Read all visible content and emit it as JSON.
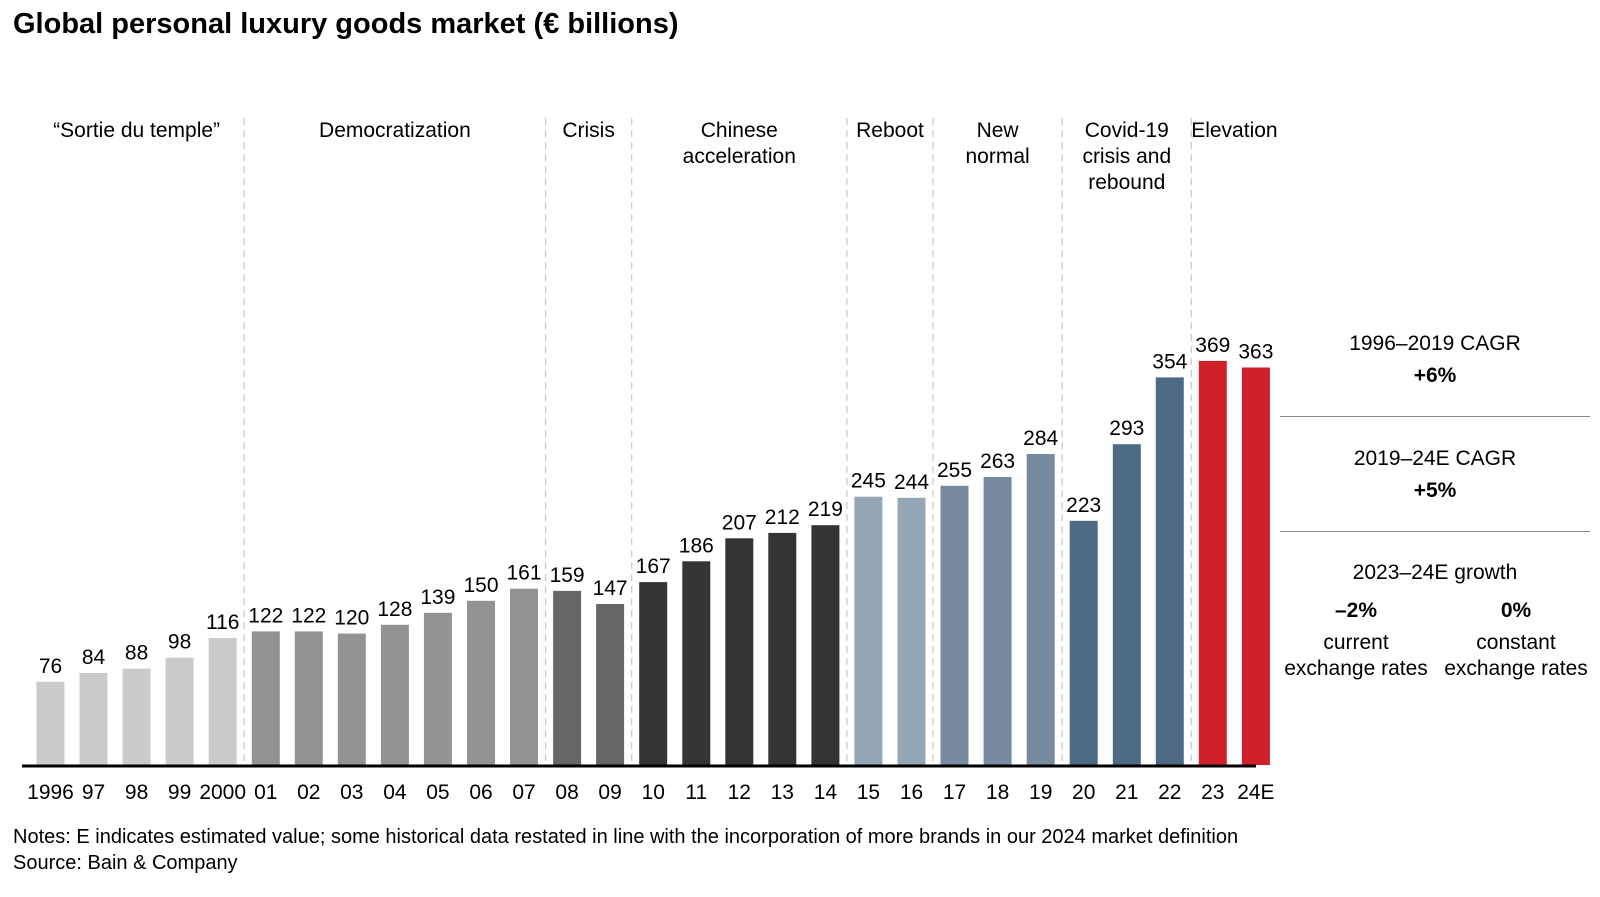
{
  "title": "Global personal luxury goods market (€ billions)",
  "notes": "Notes: E indicates estimated value; some historical data restated in line with the incorporation of more brands in our 2024 market definition",
  "source": "Source: Bain & Company",
  "chart_data": {
    "type": "bar",
    "title": "Global personal luxury goods market (€ billions)",
    "xlabel": "",
    "ylabel": "",
    "categories": [
      "1996",
      "97",
      "98",
      "99",
      "2000",
      "01",
      "02",
      "03",
      "04",
      "05",
      "06",
      "07",
      "08",
      "09",
      "10",
      "11",
      "12",
      "13",
      "14",
      "15",
      "16",
      "17",
      "18",
      "19",
      "20",
      "21",
      "22",
      "23",
      "24E"
    ],
    "values": [
      76,
      84,
      88,
      98,
      116,
      122,
      122,
      120,
      128,
      139,
      150,
      161,
      159,
      147,
      167,
      186,
      207,
      212,
      219,
      245,
      244,
      255,
      263,
      284,
      223,
      293,
      354,
      369,
      363
    ],
    "colors": [
      "#cbcbcb",
      "#cbcbcb",
      "#cbcbcb",
      "#cbcbcb",
      "#cbcbcb",
      "#939393",
      "#939393",
      "#939393",
      "#939393",
      "#939393",
      "#939393",
      "#939393",
      "#666666",
      "#666666",
      "#333535",
      "#333535",
      "#333535",
      "#333535",
      "#333535",
      "#95a6b6",
      "#95a6b6",
      "#768b9f",
      "#768b9f",
      "#768b9f",
      "#4e6b85",
      "#4e6b85",
      "#4e6b85",
      "#d0202a",
      "#d0202a"
    ],
    "ylim": [
      0,
      400
    ],
    "grid": false,
    "eras": [
      {
        "lines": [
          "“Sortie du temple”"
        ],
        "start": 0,
        "end": 4
      },
      {
        "lines": [
          "Democratization"
        ],
        "start": 5,
        "end": 11
      },
      {
        "lines": [
          "Crisis"
        ],
        "start": 12,
        "end": 13
      },
      {
        "lines": [
          "Chinese",
          "acceleration"
        ],
        "start": 14,
        "end": 18
      },
      {
        "lines": [
          "Reboot"
        ],
        "start": 19,
        "end": 20
      },
      {
        "lines": [
          "New",
          "normal"
        ],
        "start": 21,
        "end": 23
      },
      {
        "lines": [
          "Covid-19",
          "crisis and",
          "rebound"
        ],
        "start": 24,
        "end": 26
      },
      {
        "lines": [
          "Elevation"
        ],
        "start": 27,
        "end": 28
      }
    ]
  },
  "sidebar": {
    "cagr1_label": "1996–2019 CAGR",
    "cagr1_value": "+6%",
    "cagr2_label": "2019–24E CAGR",
    "cagr2_value": "+5%",
    "growth_label": "2023–24E growth",
    "current_value": "–2%",
    "current_line1": "current",
    "current_line2": "exchange rates",
    "constant_value": "0%",
    "constant_line1": "constant",
    "constant_line2": "exchange rates"
  }
}
